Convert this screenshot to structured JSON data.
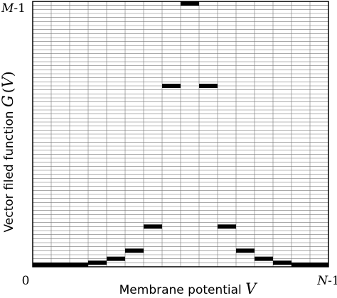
{
  "chart_data": {
    "type": "line",
    "plot_style": "step-segments",
    "title": "",
    "xlabel": {
      "text": "Membrane potential ",
      "var": "V"
    },
    "ylabel": {
      "text": "Vector filed function ",
      "func": "G",
      "open": "(",
      "var": "V",
      "close": ")"
    },
    "x_ticks": {
      "left": "0",
      "right_var": "N",
      "right_suffix": "-1"
    },
    "y_ticks": {
      "top_var": "M",
      "top_suffix": "-1"
    },
    "x_range": [
      0,
      16
    ],
    "y_range": [
      0,
      66
    ],
    "x_grid": [
      0,
      1,
      2,
      3,
      4,
      5,
      6,
      7,
      8,
      9,
      10,
      11,
      12,
      13,
      14,
      15,
      16
    ],
    "y_grid_every": 1,
    "grid": true,
    "line_color": "#000000",
    "grid_color": "#777777",
    "segments": [
      {
        "x": [
          0,
          3
        ],
        "y": 0
      },
      {
        "x": [
          3,
          4
        ],
        "y": 1
      },
      {
        "x": [
          4,
          5
        ],
        "y": 2
      },
      {
        "x": [
          5,
          6
        ],
        "y": 4
      },
      {
        "x": [
          6,
          7
        ],
        "y": 10
      },
      {
        "x": [
          7,
          8
        ],
        "y": 45
      },
      {
        "x": [
          8,
          9
        ],
        "y": 66
      },
      {
        "x": [
          9,
          10
        ],
        "y": 45
      },
      {
        "x": [
          10,
          11
        ],
        "y": 10
      },
      {
        "x": [
          11,
          12
        ],
        "y": 4
      },
      {
        "x": [
          12,
          13
        ],
        "y": 2
      },
      {
        "x": [
          13,
          14
        ],
        "y": 1
      },
      {
        "x": [
          14,
          16
        ],
        "y": 0
      }
    ]
  }
}
